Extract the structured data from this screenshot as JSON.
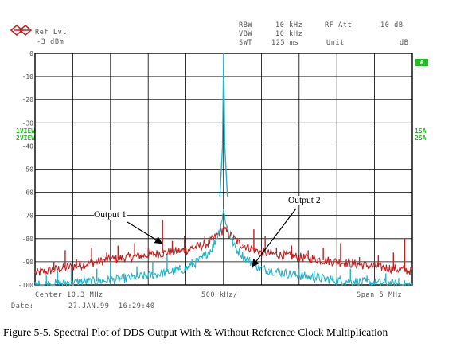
{
  "instrument": {
    "ref_level_label": "Ref Lvl",
    "ref_level_value": "-3 dBm",
    "rbw_label": "RBW",
    "rbw_value": "10 kHz",
    "vbw_label": "VBW",
    "vbw_value": "10 kHz",
    "swt_label": "SWT",
    "swt_value": "125 ms",
    "rf_att_label": "RF Att",
    "rf_att_value": "10 dB",
    "unit_label": "Unit",
    "unit_value": "dB",
    "marker_flag": "A",
    "view_labels": [
      "1VIEW",
      "2VIEW"
    ],
    "sa_labels": [
      "1SA",
      "2SA"
    ],
    "center_label": "Center 10.3 MHz",
    "div_label": "500 kHz/",
    "span_label": "Span 5 MHz",
    "date_label": "Date:",
    "date_value": "27.JAN.99  16:29:40",
    "logo_icon": "rohde-schwarz-logo-icon"
  },
  "annotations": {
    "output1": "Output 1",
    "output2": "Output 2"
  },
  "caption": "Figure 5-5. Spectral Plot of DDS Output With & Without Reference Clock Multiplication",
  "colors": {
    "output1": "#c42020",
    "output2": "#22b4c8",
    "grid": "#000000",
    "labels": "#555555",
    "status": "#1fbf1f"
  },
  "chart_data": {
    "type": "line",
    "title": "",
    "xlabel": "",
    "ylabel": "",
    "x_unit": "MHz",
    "y_unit": "dB",
    "xlim": [
      7.8,
      12.8
    ],
    "ylim": [
      -100,
      0
    ],
    "x_center": 10.3,
    "x_div": 0.5,
    "yticks": [
      0,
      -10,
      -20,
      -30,
      -40,
      -50,
      -60,
      -70,
      -80,
      -90,
      -100
    ],
    "ytick_labels": [
      "0",
      "-10",
      "-20",
      "-30",
      "-40",
      "-50",
      "-60",
      "-70",
      "-80",
      "-90",
      "-100"
    ],
    "grid": true,
    "series": [
      {
        "name": "Output 1",
        "color": "#c42020",
        "floor": [
          [
            7.8,
            -95
          ],
          [
            8.3,
            -92
          ],
          [
            8.8,
            -89
          ],
          [
            9.3,
            -87
          ],
          [
            9.8,
            -85
          ],
          [
            10.1,
            -82
          ],
          [
            10.2,
            -79
          ],
          [
            10.3,
            -76
          ],
          [
            10.4,
            -79
          ],
          [
            10.5,
            -82
          ],
          [
            10.8,
            -86
          ],
          [
            11.3,
            -88
          ],
          [
            11.8,
            -90
          ],
          [
            12.3,
            -92
          ],
          [
            12.8,
            -94
          ]
        ],
        "spurs": [
          [
            8.05,
            -90
          ],
          [
            8.2,
            -85
          ],
          [
            8.35,
            -89
          ],
          [
            8.55,
            -84
          ],
          [
            8.75,
            -86
          ],
          [
            8.9,
            -83
          ],
          [
            9.12,
            -82
          ],
          [
            9.3,
            -84
          ],
          [
            9.49,
            -72
          ],
          [
            9.62,
            -81
          ],
          [
            9.78,
            -79
          ],
          [
            9.88,
            -83
          ],
          [
            10.05,
            -79
          ],
          [
            10.55,
            -83
          ],
          [
            10.7,
            -76
          ],
          [
            10.85,
            -79
          ],
          [
            11.0,
            -84
          ],
          [
            11.2,
            -83
          ],
          [
            11.42,
            -85
          ],
          [
            11.62,
            -84
          ],
          [
            11.85,
            -82
          ],
          [
            12.1,
            -88
          ],
          [
            12.35,
            -87
          ],
          [
            12.55,
            -86
          ],
          [
            12.7,
            -80
          ]
        ]
      },
      {
        "name": "Output 2",
        "color": "#22b4c8",
        "floor": [
          [
            7.8,
            -100
          ],
          [
            8.3,
            -99
          ],
          [
            8.8,
            -98
          ],
          [
            9.3,
            -96
          ],
          [
            9.8,
            -93
          ],
          [
            10.0,
            -89
          ],
          [
            10.15,
            -84
          ],
          [
            10.25,
            -76
          ],
          [
            10.3,
            -68
          ],
          [
            10.35,
            -76
          ],
          [
            10.45,
            -84
          ],
          [
            10.6,
            -89
          ],
          [
            10.8,
            -93
          ],
          [
            11.3,
            -96
          ],
          [
            11.8,
            -98
          ],
          [
            12.3,
            -99
          ],
          [
            12.8,
            -100
          ]
        ],
        "carrier": [
          10.3,
          0
        ],
        "spurs": [
          [
            7.95,
            -96
          ],
          [
            8.1,
            -94
          ],
          [
            8.28,
            -92
          ],
          [
            8.45,
            -96
          ],
          [
            8.62,
            -93
          ],
          [
            8.8,
            -90
          ],
          [
            8.98,
            -95
          ],
          [
            9.15,
            -92
          ],
          [
            9.36,
            -90
          ],
          [
            9.55,
            -87
          ],
          [
            9.72,
            -93
          ],
          [
            9.88,
            -89
          ],
          [
            10.04,
            -86
          ],
          [
            10.55,
            -86
          ],
          [
            10.72,
            -92
          ],
          [
            10.9,
            -93
          ],
          [
            11.1,
            -95
          ],
          [
            11.3,
            -93
          ],
          [
            11.5,
            -94
          ],
          [
            11.72,
            -96
          ],
          [
            11.98,
            -93
          ],
          [
            12.2,
            -96
          ],
          [
            12.45,
            -95
          ],
          [
            12.62,
            -97
          ]
        ]
      }
    ]
  }
}
